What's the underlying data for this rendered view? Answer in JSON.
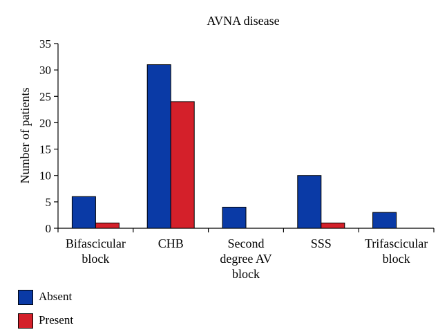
{
  "chart_data": {
    "type": "bar",
    "title": "AVNA disease",
    "ylabel": "Number of patients",
    "xlabel": "",
    "ylim": [
      0,
      35
    ],
    "yticks": [
      0,
      5,
      10,
      15,
      20,
      25,
      30,
      35
    ],
    "categories": [
      [
        "Bifascicular",
        "block"
      ],
      [
        "CHB"
      ],
      [
        "Second",
        "degree AV",
        "block"
      ],
      [
        "SSS"
      ],
      [
        "Trifascicular",
        "block"
      ]
    ],
    "series": [
      {
        "name": "Absent",
        "color": "#0a3aa6",
        "values": [
          6,
          31,
          4,
          10,
          3
        ]
      },
      {
        "name": "Present",
        "color": "#d4202a",
        "values": [
          1,
          24,
          0,
          1,
          0
        ]
      }
    ],
    "grid": false,
    "legend_position": "bottom-left"
  }
}
